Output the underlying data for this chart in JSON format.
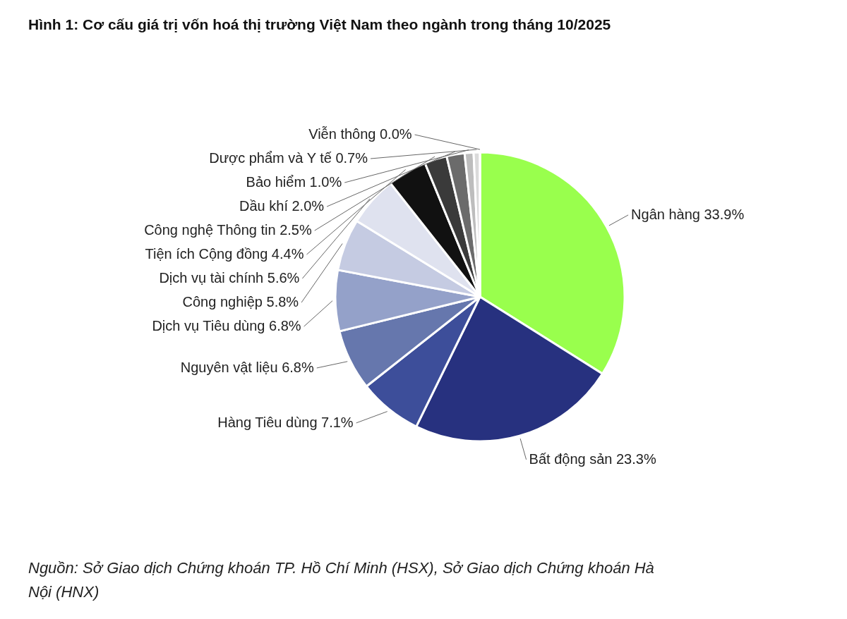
{
  "chart_data": {
    "type": "pie",
    "title": "Hình 1: Cơ cấu giá trị vốn hoá thị trường Việt Nam theo ngành trong tháng 10/2025",
    "categories": [
      "Ngân hàng",
      "Bất động sản",
      "Hàng Tiêu dùng",
      "Nguyên vật liệu",
      "Dịch vụ Tiêu dùng",
      "Công nghiệp",
      "Dịch vụ tài chính",
      "Tiện ích Cộng đồng",
      "Công nghệ Thông tin",
      "Dầu khí",
      "Bảo hiểm",
      "Dược phẩm và Y tế",
      "Viễn thông"
    ],
    "values": [
      33.9,
      23.3,
      7.1,
      6.8,
      6.8,
      5.8,
      5.6,
      4.4,
      2.5,
      2.0,
      1.0,
      0.7,
      0.0
    ],
    "value_labels": [
      "33.9%",
      "23.3%",
      "7.1%",
      "6.8%",
      "6.8%",
      "5.8%",
      "5.6%",
      "4.4%",
      "2.5%",
      "2.0%",
      "1.0%",
      "0.7%",
      "0.0%"
    ],
    "colors": [
      "#99ff4d",
      "#27317f",
      "#3d4e9a",
      "#6677ad",
      "#94a1c9",
      "#c5cbe2",
      "#dfe2ef",
      "#111111",
      "#3a3a3a",
      "#6b6b6b",
      "#bdbdbd",
      "#dadada",
      "#f0f0f0"
    ],
    "annotations": [
      "Nguồn: Sở Giao dịch Chứng khoán TP. Hồ Chí Minh (HSX), Sở Giao dịch Chứng khoán Hà Nội (HNX)"
    ]
  }
}
